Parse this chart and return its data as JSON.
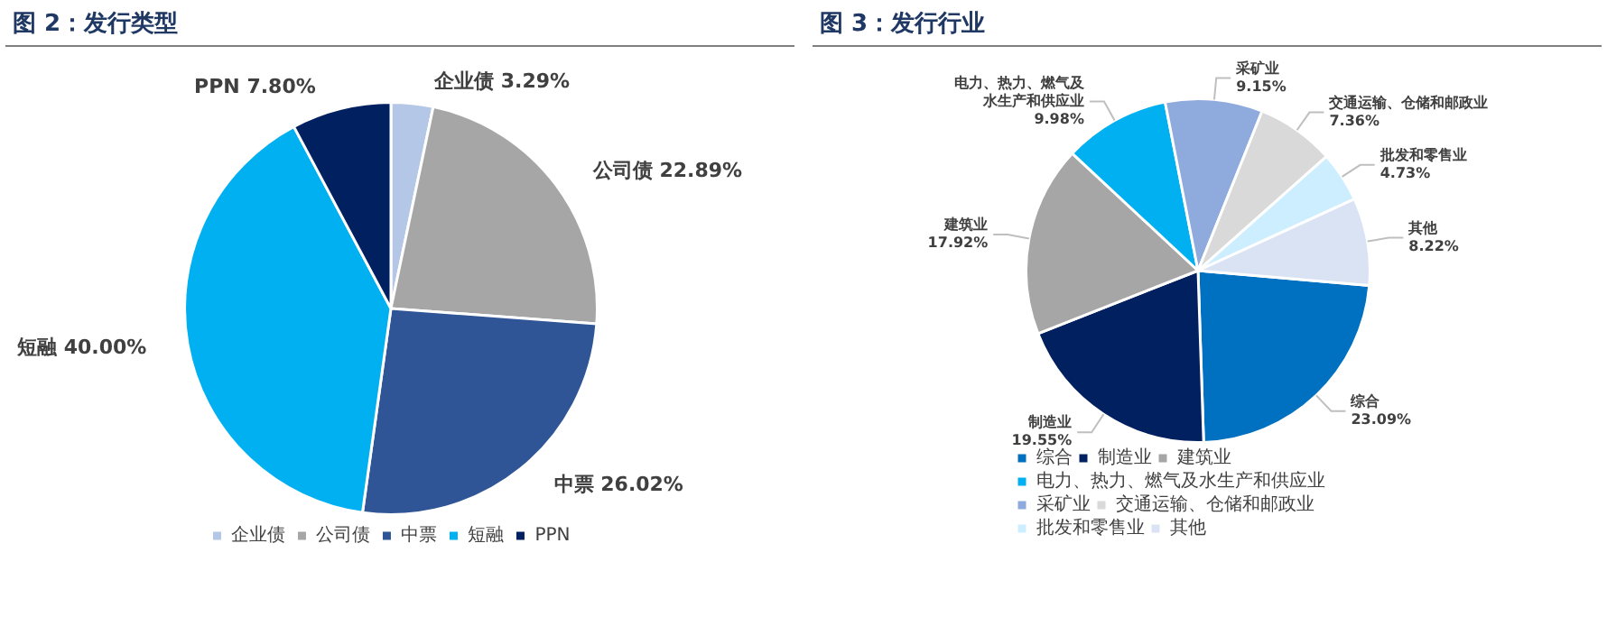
{
  "chart_data": [
    {
      "type": "pie",
      "title": "图 2：发行类型",
      "categories": [
        "企业债",
        "公司债",
        "中票",
        "短融",
        "PPN"
      ],
      "values": [
        3.29,
        22.89,
        26.02,
        40.0,
        7.8
      ],
      "value_labels": [
        "3.29%",
        "22.89%",
        "26.02%",
        "40.00%",
        "7.80%"
      ],
      "colors": [
        "#b4c7e7",
        "#a6a6a6",
        "#2f5597",
        "#00b0f0",
        "#002060"
      ],
      "legend": "bottom"
    },
    {
      "type": "pie",
      "title": "图 3：发行行业",
      "categories": [
        "综合",
        "制造业",
        "建筑业",
        "电力、热力、燃气及水生产和供应业",
        "采矿业",
        "交通运输、仓储和邮政业",
        "批发和零售业",
        "其他"
      ],
      "values": [
        23.09,
        19.55,
        17.92,
        9.98,
        9.15,
        7.36,
        4.73,
        8.22
      ],
      "value_labels": [
        "23.09%",
        "19.55%",
        "17.92%",
        "9.98%",
        "9.15%",
        "7.36%",
        "4.73%",
        "8.22%"
      ],
      "colors": [
        "#0070c0",
        "#002060",
        "#a6a6a6",
        "#00b0f0",
        "#8faadc",
        "#d9d9d9",
        "#cdeeff",
        "#dae3f3"
      ],
      "legend": "bottom"
    }
  ]
}
